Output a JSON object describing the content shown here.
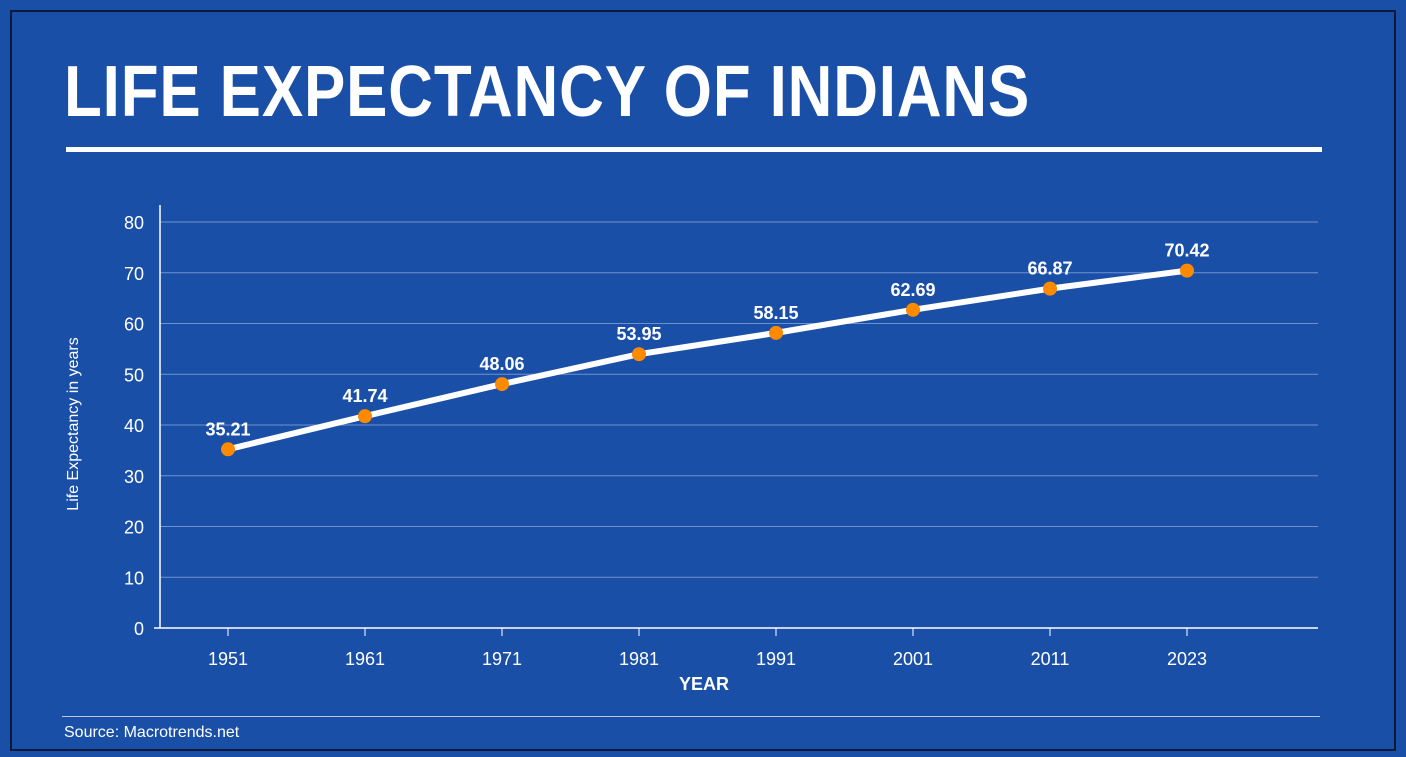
{
  "title": "LIFE EXPECTANCY OF INDIANS",
  "source": "Source: Macrotrends.net",
  "colors": {
    "background": "#1a4fa8",
    "line": "#ffffff",
    "marker": "#ff8a00",
    "gridline": "#6f90cf",
    "text": "#ffffff"
  },
  "chart_data": {
    "type": "line",
    "xlabel": "YEAR",
    "ylabel": "Life Expectancy in years",
    "ylim": [
      0,
      80
    ],
    "yticks": [
      0,
      10,
      20,
      30,
      40,
      50,
      60,
      70,
      80
    ],
    "categories": [
      "1951",
      "1961",
      "1971",
      "1981",
      "1991",
      "2001",
      "2011",
      "2023"
    ],
    "series": [
      {
        "values": [
          35.21,
          41.74,
          48.06,
          53.95,
          58.15,
          62.69,
          66.87,
          70.42
        ],
        "labels": [
          "35.21",
          "41.74",
          "48.06",
          "53.95",
          "58.15",
          "62.69",
          "66.87",
          "70.42"
        ]
      }
    ],
    "grid": true,
    "legend": "none"
  }
}
